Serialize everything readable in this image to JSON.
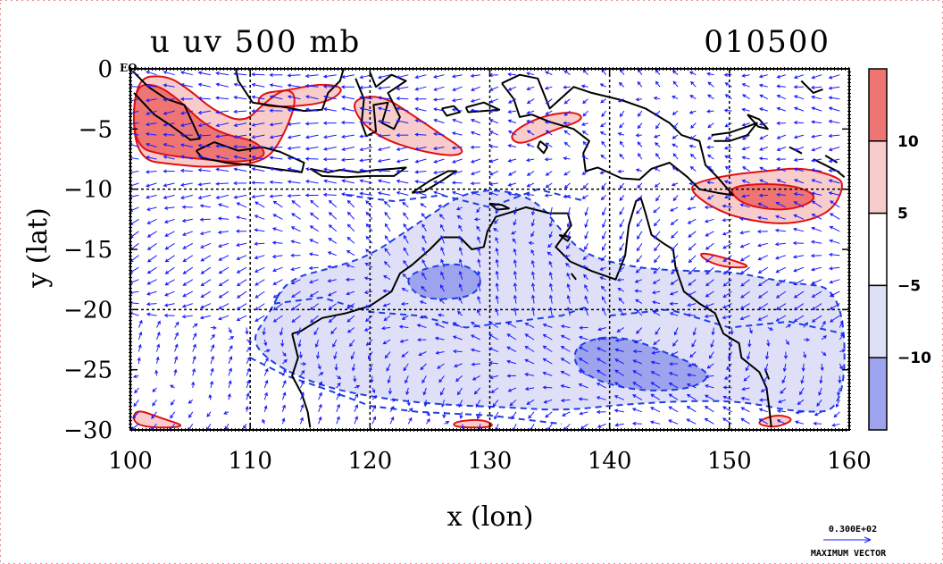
{
  "chart_data": {
    "type": "contour",
    "title_left": "u uv 500 mb",
    "title_right": "010500",
    "xlabel": "x (lon)",
    "ylabel": "y (lat)",
    "xlim": [
      100,
      160
    ],
    "ylim": [
      -30,
      0
    ],
    "x_ticks": [
      100,
      110,
      120,
      130,
      140,
      150,
      160
    ],
    "x_tick_labels": [
      "100",
      "110",
      "120",
      "130",
      "140",
      "150",
      "160"
    ],
    "y_ticks": [
      0,
      -5,
      -10,
      -15,
      -20,
      -25,
      -30
    ],
    "y_tick_labels": [
      "0",
      "−5",
      "−10",
      "−15",
      "−20",
      "−25",
      "−30"
    ],
    "y_top_suffix": "EQ",
    "gridlines_x": [
      110,
      120,
      130,
      140,
      150
    ],
    "gridlines_y": [
      -10,
      -20
    ],
    "colorbar": {
      "levels": [
        10,
        5,
        -5,
        -10
      ],
      "labels": [
        "10",
        "5",
        "−5",
        "−10"
      ],
      "colors": [
        "#ef7575",
        "#f9cccc",
        "#ffffff",
        "#dfe0f8",
        "#9ea3ee"
      ]
    },
    "shading": {
      "positive": [
        {
          "name": "west-jet",
          "points": [
            [
              100.3,
              -1.5
            ],
            [
              102,
              -1.2
            ],
            [
              104,
              -2.5
            ],
            [
              106,
              -4.5
            ],
            [
              108,
              -5.5
            ],
            [
              110.5,
              -6
            ],
            [
              111.5,
              -7.3
            ],
            [
              109,
              -7.8
            ],
            [
              106,
              -7.5
            ],
            [
              103,
              -7.2
            ],
            [
              100.3,
              -6.5
            ]
          ],
          "level": "high"
        },
        {
          "name": "west-jet-outer",
          "points": [
            [
              100.3,
              -0.8
            ],
            [
              103,
              -0.5
            ],
            [
              105,
              -1.8
            ],
            [
              107,
              -3.5
            ],
            [
              109.5,
              -4.5
            ],
            [
              111,
              -3
            ],
            [
              113,
              -1.5
            ],
            [
              114,
              -2.5
            ],
            [
              112.5,
              -6.2
            ],
            [
              111,
              -7.8
            ],
            [
              107,
              -8.2
            ],
            [
              104,
              -8
            ],
            [
              100.3,
              -7.5
            ]
          ],
          "level": "low"
        },
        {
          "name": "north-java-sea",
          "points": [
            [
              111,
              -2
            ],
            [
              113,
              -1.8
            ],
            [
              116,
              -1.2
            ],
            [
              118,
              -1.6
            ],
            [
              116.5,
              -2.8
            ],
            [
              113,
              -3.2
            ],
            [
              110.5,
              -3
            ]
          ],
          "level": "low"
        },
        {
          "name": "banda-band",
          "points": [
            [
              118.5,
              -2.5
            ],
            [
              121,
              -2.2
            ],
            [
              123.5,
              -3.8
            ],
            [
              126,
              -5.5
            ],
            [
              128,
              -6.8
            ],
            [
              127,
              -7.3
            ],
            [
              124,
              -6.8
            ],
            [
              121,
              -5.8
            ],
            [
              119,
              -4.2
            ]
          ],
          "level": "low"
        },
        {
          "name": "arafura-band",
          "points": [
            [
              131.5,
              -5.5
            ],
            [
              134,
              -4
            ],
            [
              137,
              -3.5
            ],
            [
              138,
              -4.2
            ],
            [
              135,
              -5.2
            ],
            [
              132.5,
              -6.4
            ]
          ],
          "level": "low"
        },
        {
          "name": "coral-sea-band",
          "points": [
            [
              147,
              -9.5
            ],
            [
              150,
              -8.8
            ],
            [
              153,
              -8.5
            ],
            [
              156,
              -8.2
            ],
            [
              158.5,
              -8.8
            ],
            [
              159.7,
              -9.5
            ],
            [
              158.5,
              -12
            ],
            [
              155,
              -13
            ],
            [
              151,
              -12.5
            ],
            [
              148.5,
              -11.5
            ],
            [
              146.8,
              -10.2
            ]
          ],
          "level": "low"
        },
        {
          "name": "coral-sea-core",
          "points": [
            [
              150,
              -9.8
            ],
            [
              153,
              -9.5
            ],
            [
              156,
              -9.8
            ],
            [
              157.5,
              -10.8
            ],
            [
              155,
              -11.8
            ],
            [
              152,
              -11.5
            ],
            [
              150.5,
              -10.8
            ]
          ],
          "level": "high"
        },
        {
          "name": "tasman-blob",
          "points": [
            [
              147.5,
              -15.2
            ],
            [
              150,
              -15.8
            ],
            [
              152,
              -16.5
            ],
            [
              149.5,
              -16.5
            ],
            [
              147.8,
              -15.8
            ]
          ],
          "level": "low"
        },
        {
          "name": "sw-corner",
          "points": [
            [
              100.3,
              -28.2
            ],
            [
              102.5,
              -29
            ],
            [
              105,
              -29.8
            ],
            [
              100.3,
              -29.8
            ]
          ],
          "level": "low"
        },
        {
          "name": "south-central",
          "points": [
            [
              127,
              -29.3
            ],
            [
              129.5,
              -29.1
            ],
            [
              130.6,
              -29.8
            ],
            [
              127,
              -29.8
            ]
          ],
          "level": "low"
        },
        {
          "name": "south-east",
          "points": [
            [
              152.5,
              -29.2
            ],
            [
              154,
              -28.7
            ],
            [
              155.5,
              -29.1
            ],
            [
              154,
              -29.8
            ],
            [
              152.5,
              -29.6
            ]
          ],
          "level": "low"
        }
      ],
      "negative": [
        {
          "name": "australia-broad",
          "points": [
            [
              113,
              -17.5
            ],
            [
              117,
              -16.5
            ],
            [
              120,
              -15.5
            ],
            [
              123,
              -13.5
            ],
            [
              126,
              -11.5
            ],
            [
              128,
              -10.3
            ],
            [
              131,
              -10
            ],
            [
              134,
              -11
            ],
            [
              136,
              -13.5
            ],
            [
              138,
              -15.5
            ],
            [
              142,
              -16.5
            ],
            [
              146,
              -16.8
            ],
            [
              150,
              -16.8
            ],
            [
              155,
              -17.8
            ],
            [
              159.5,
              -18.2
            ],
            [
              159.7,
              -28.3
            ],
            [
              156,
              -28.6
            ],
            [
              151,
              -27.6
            ],
            [
              146,
              -27.6
            ],
            [
              141,
              -27.9
            ],
            [
              136,
              -28.4
            ],
            [
              131,
              -28.1
            ],
            [
              126,
              -27.9
            ],
            [
              121,
              -27.4
            ],
            [
              116,
              -26.4
            ],
            [
              112,
              -24.6
            ],
            [
              110,
              -22.6
            ],
            [
              111.5,
              -20.5
            ]
          ],
          "level": "low"
        },
        {
          "name": "central-core",
          "points": [
            [
              123,
              -17.2
            ],
            [
              125.5,
              -16.3
            ],
            [
              128,
              -16.2
            ],
            [
              129.5,
              -17.5
            ],
            [
              128.5,
              -19
            ],
            [
              125,
              -19.2
            ],
            [
              123.5,
              -18.5
            ]
          ],
          "level": "high"
        },
        {
          "name": "east-core",
          "points": [
            [
              137.2,
              -23
            ],
            [
              139.5,
              -22.2
            ],
            [
              142,
              -22.5
            ],
            [
              144.5,
              -23.5
            ],
            [
              147,
              -24.5
            ],
            [
              148.5,
              -25.5
            ],
            [
              147,
              -26.5
            ],
            [
              144,
              -26.8
            ],
            [
              141,
              -26.5
            ],
            [
              138.5,
              -25.7
            ],
            [
              137,
              -24.5
            ]
          ],
          "level": "high"
        }
      ]
    },
    "max_vector": {
      "label": "0.300E+02",
      "caption": "MAXIMUM VECTOR",
      "value": 30
    },
    "vector_field": {
      "description": "500 mb wind arrows",
      "x_step": 1.5,
      "y_step": 1.0
    }
  }
}
